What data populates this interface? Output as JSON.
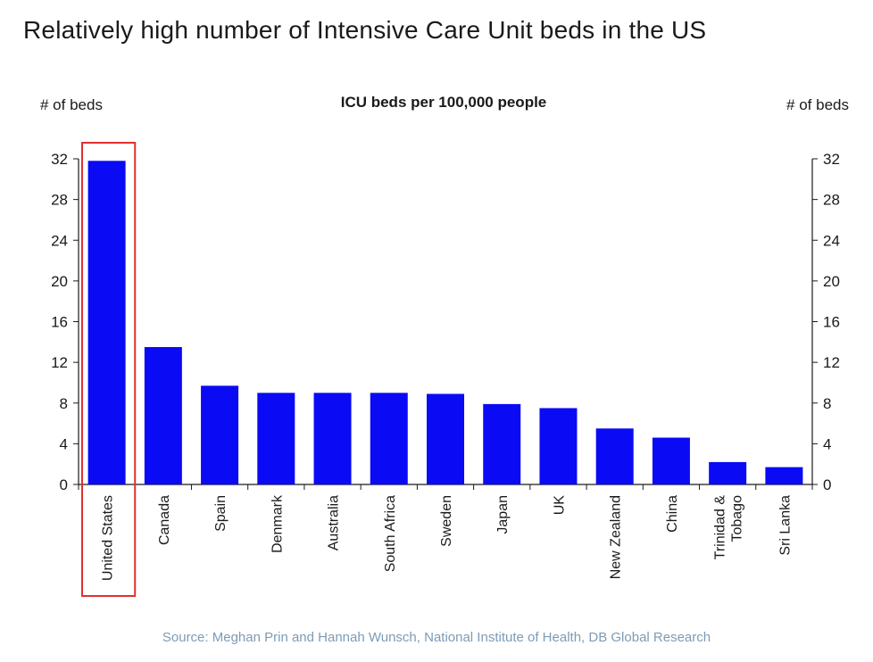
{
  "headline": "Relatively high number of Intensive Care Unit beds in the US",
  "source": "Source: Meghan Prin and Hannah Wunsch, National Institute of Health, DB Global Research",
  "colors": {
    "bar": "#0a0af5",
    "highlight": "#e03030",
    "axis": "#1a1a1a",
    "source": "#7d9bb5"
  },
  "chart_data": {
    "type": "bar",
    "title": "ICU beds per 100,000 people",
    "ylabel_left": "# of beds",
    "ylabel_right": "# of beds",
    "ylim": [
      0,
      32
    ],
    "yticks": [
      0,
      4,
      8,
      12,
      16,
      20,
      24,
      28,
      32
    ],
    "grid": false,
    "categories": [
      "United States",
      "Canada",
      "Spain",
      "Denmark",
      "Australia",
      "South Africa",
      "Sweden",
      "Japan",
      "UK",
      "New Zealand",
      "China",
      "Trinidad & Tobago",
      "Sri Lanka"
    ],
    "category_label_lines": [
      [
        "United States"
      ],
      [
        "Canada"
      ],
      [
        "Spain"
      ],
      [
        "Denmark"
      ],
      [
        "Australia"
      ],
      [
        "South Africa"
      ],
      [
        "Sweden"
      ],
      [
        "Japan"
      ],
      [
        "UK"
      ],
      [
        "New Zealand"
      ],
      [
        "China"
      ],
      [
        "Trinidad &",
        "Tobago"
      ],
      [
        "Sri Lanka"
      ]
    ],
    "values": [
      31.8,
      13.5,
      9.7,
      9.0,
      9.0,
      9.0,
      8.9,
      7.9,
      7.5,
      5.5,
      4.6,
      2.2,
      1.7
    ],
    "highlighted_category": "United States"
  }
}
